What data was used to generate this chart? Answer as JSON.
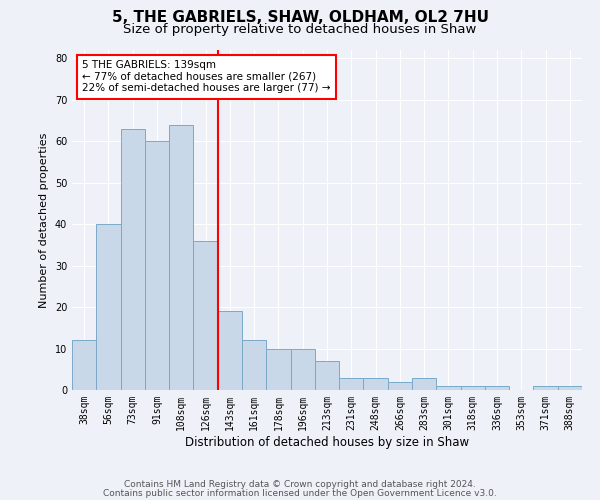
{
  "title1": "5, THE GABRIELS, SHAW, OLDHAM, OL2 7HU",
  "title2": "Size of property relative to detached houses in Shaw",
  "xlabel": "Distribution of detached houses by size in Shaw",
  "ylabel": "Number of detached properties",
  "categories": [
    "38sqm",
    "56sqm",
    "73sqm",
    "91sqm",
    "108sqm",
    "126sqm",
    "143sqm",
    "161sqm",
    "178sqm",
    "196sqm",
    "213sqm",
    "231sqm",
    "248sqm",
    "266sqm",
    "283sqm",
    "301sqm",
    "318sqm",
    "336sqm",
    "353sqm",
    "371sqm",
    "388sqm"
  ],
  "values": [
    12,
    40,
    63,
    60,
    64,
    36,
    19,
    12,
    10,
    10,
    7,
    3,
    3,
    2,
    3,
    1,
    1,
    1,
    0,
    1,
    1
  ],
  "bar_color": "#c8d8e8",
  "bar_edge_color": "#7aaac8",
  "vline_index": 6,
  "annotation_text": "5 THE GABRIELS: 139sqm\n← 77% of detached houses are smaller (267)\n22% of semi-detached houses are larger (77) →",
  "annotation_box_color": "white",
  "annotation_box_edge": "red",
  "vline_color": "red",
  "ylim": [
    0,
    82
  ],
  "yticks": [
    0,
    10,
    20,
    30,
    40,
    50,
    60,
    70,
    80
  ],
  "footer1": "Contains HM Land Registry data © Crown copyright and database right 2024.",
  "footer2": "Contains public sector information licensed under the Open Government Licence v3.0.",
  "background_color": "#eef2f8",
  "grid_color": "white",
  "title1_fontsize": 11,
  "title2_fontsize": 9.5,
  "xlabel_fontsize": 8.5,
  "ylabel_fontsize": 8,
  "tick_fontsize": 7,
  "annotation_fontsize": 7.5,
  "footer_fontsize": 6.5
}
